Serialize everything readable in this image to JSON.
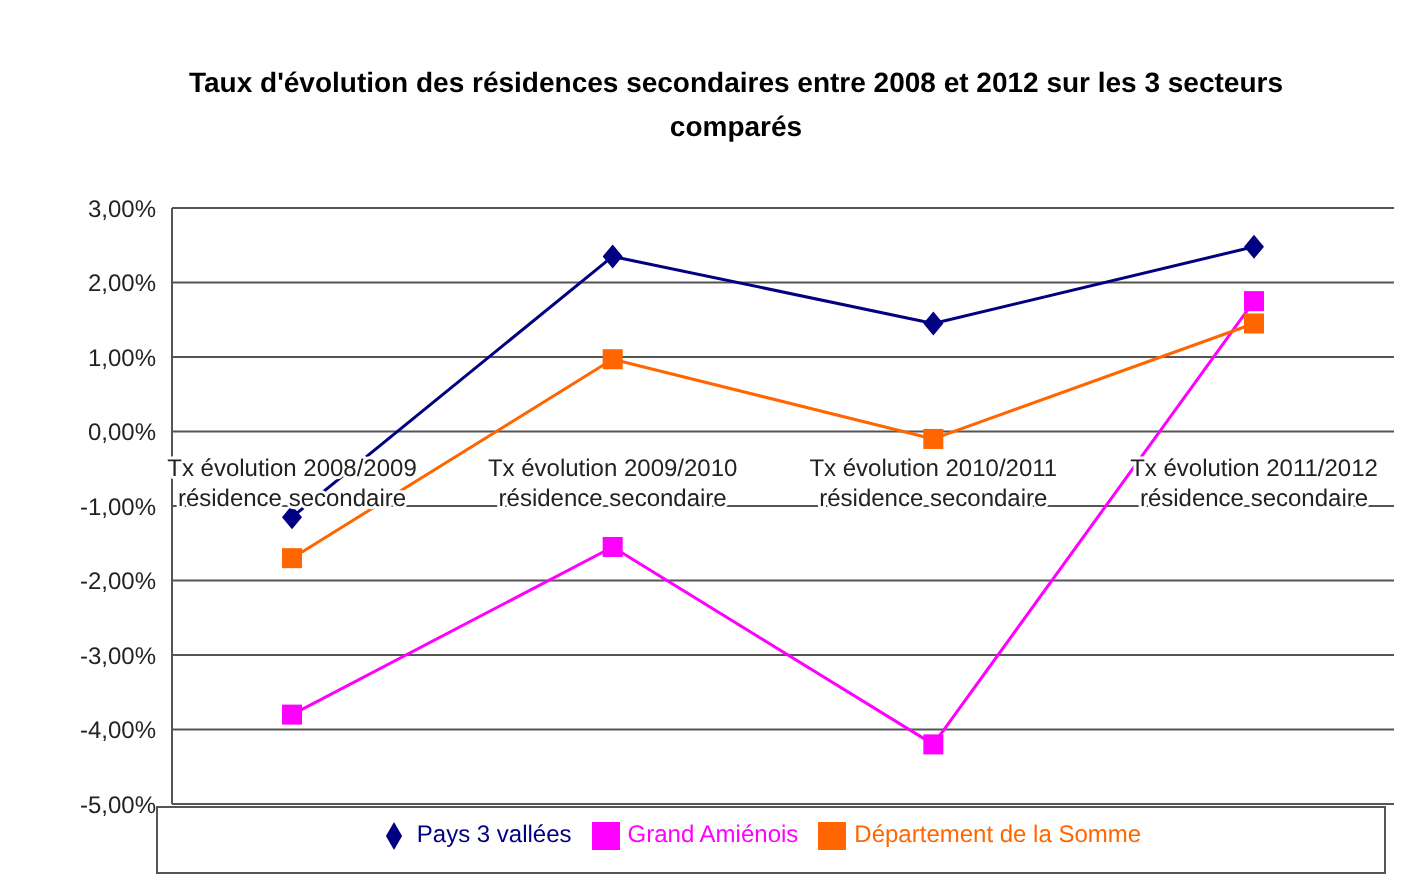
{
  "chart_data": {
    "type": "line",
    "title": "Taux d'évolution des résidences secondaires entre 2008 et 2012 sur les 3 secteurs comparés",
    "categories": [
      "Tx évolution 2008/2009 résidence secondaire",
      "Tx évolution 2009/2010 résidence secondaire",
      "Tx évolution 2010/2011 résidence secondaire",
      "Tx évolution 2011/2012 résidence secondaire"
    ],
    "series": [
      {
        "name": "Pays 3 vallées",
        "color": "#000080",
        "marker": "diamond",
        "values": [
          -1.15,
          2.35,
          1.45,
          2.48
        ]
      },
      {
        "name": "Grand Amiénois",
        "color": "#ff00ff",
        "marker": "square",
        "values": [
          -3.8,
          -1.55,
          -4.2,
          1.75
        ]
      },
      {
        "name": "Département de la Somme",
        "color": "#ff6600",
        "marker": "square",
        "values": [
          -1.7,
          0.97,
          -0.1,
          1.45
        ]
      }
    ],
    "ylim": [
      -5,
      3
    ],
    "yticks": [
      {
        "value": -5,
        "label": "-5,00%"
      },
      {
        "value": -4,
        "label": "-4,00%"
      },
      {
        "value": -3,
        "label": "-3,00%"
      },
      {
        "value": -2,
        "label": "-2,00%"
      },
      {
        "value": -1,
        "label": "-1,00%"
      },
      {
        "value": 0,
        "label": "0,00%"
      },
      {
        "value": 1,
        "label": "1,00%"
      },
      {
        "value": 2,
        "label": "2,00%"
      },
      {
        "value": 3,
        "label": "3,00%"
      }
    ],
    "grid": "y",
    "legend": "bottom"
  }
}
